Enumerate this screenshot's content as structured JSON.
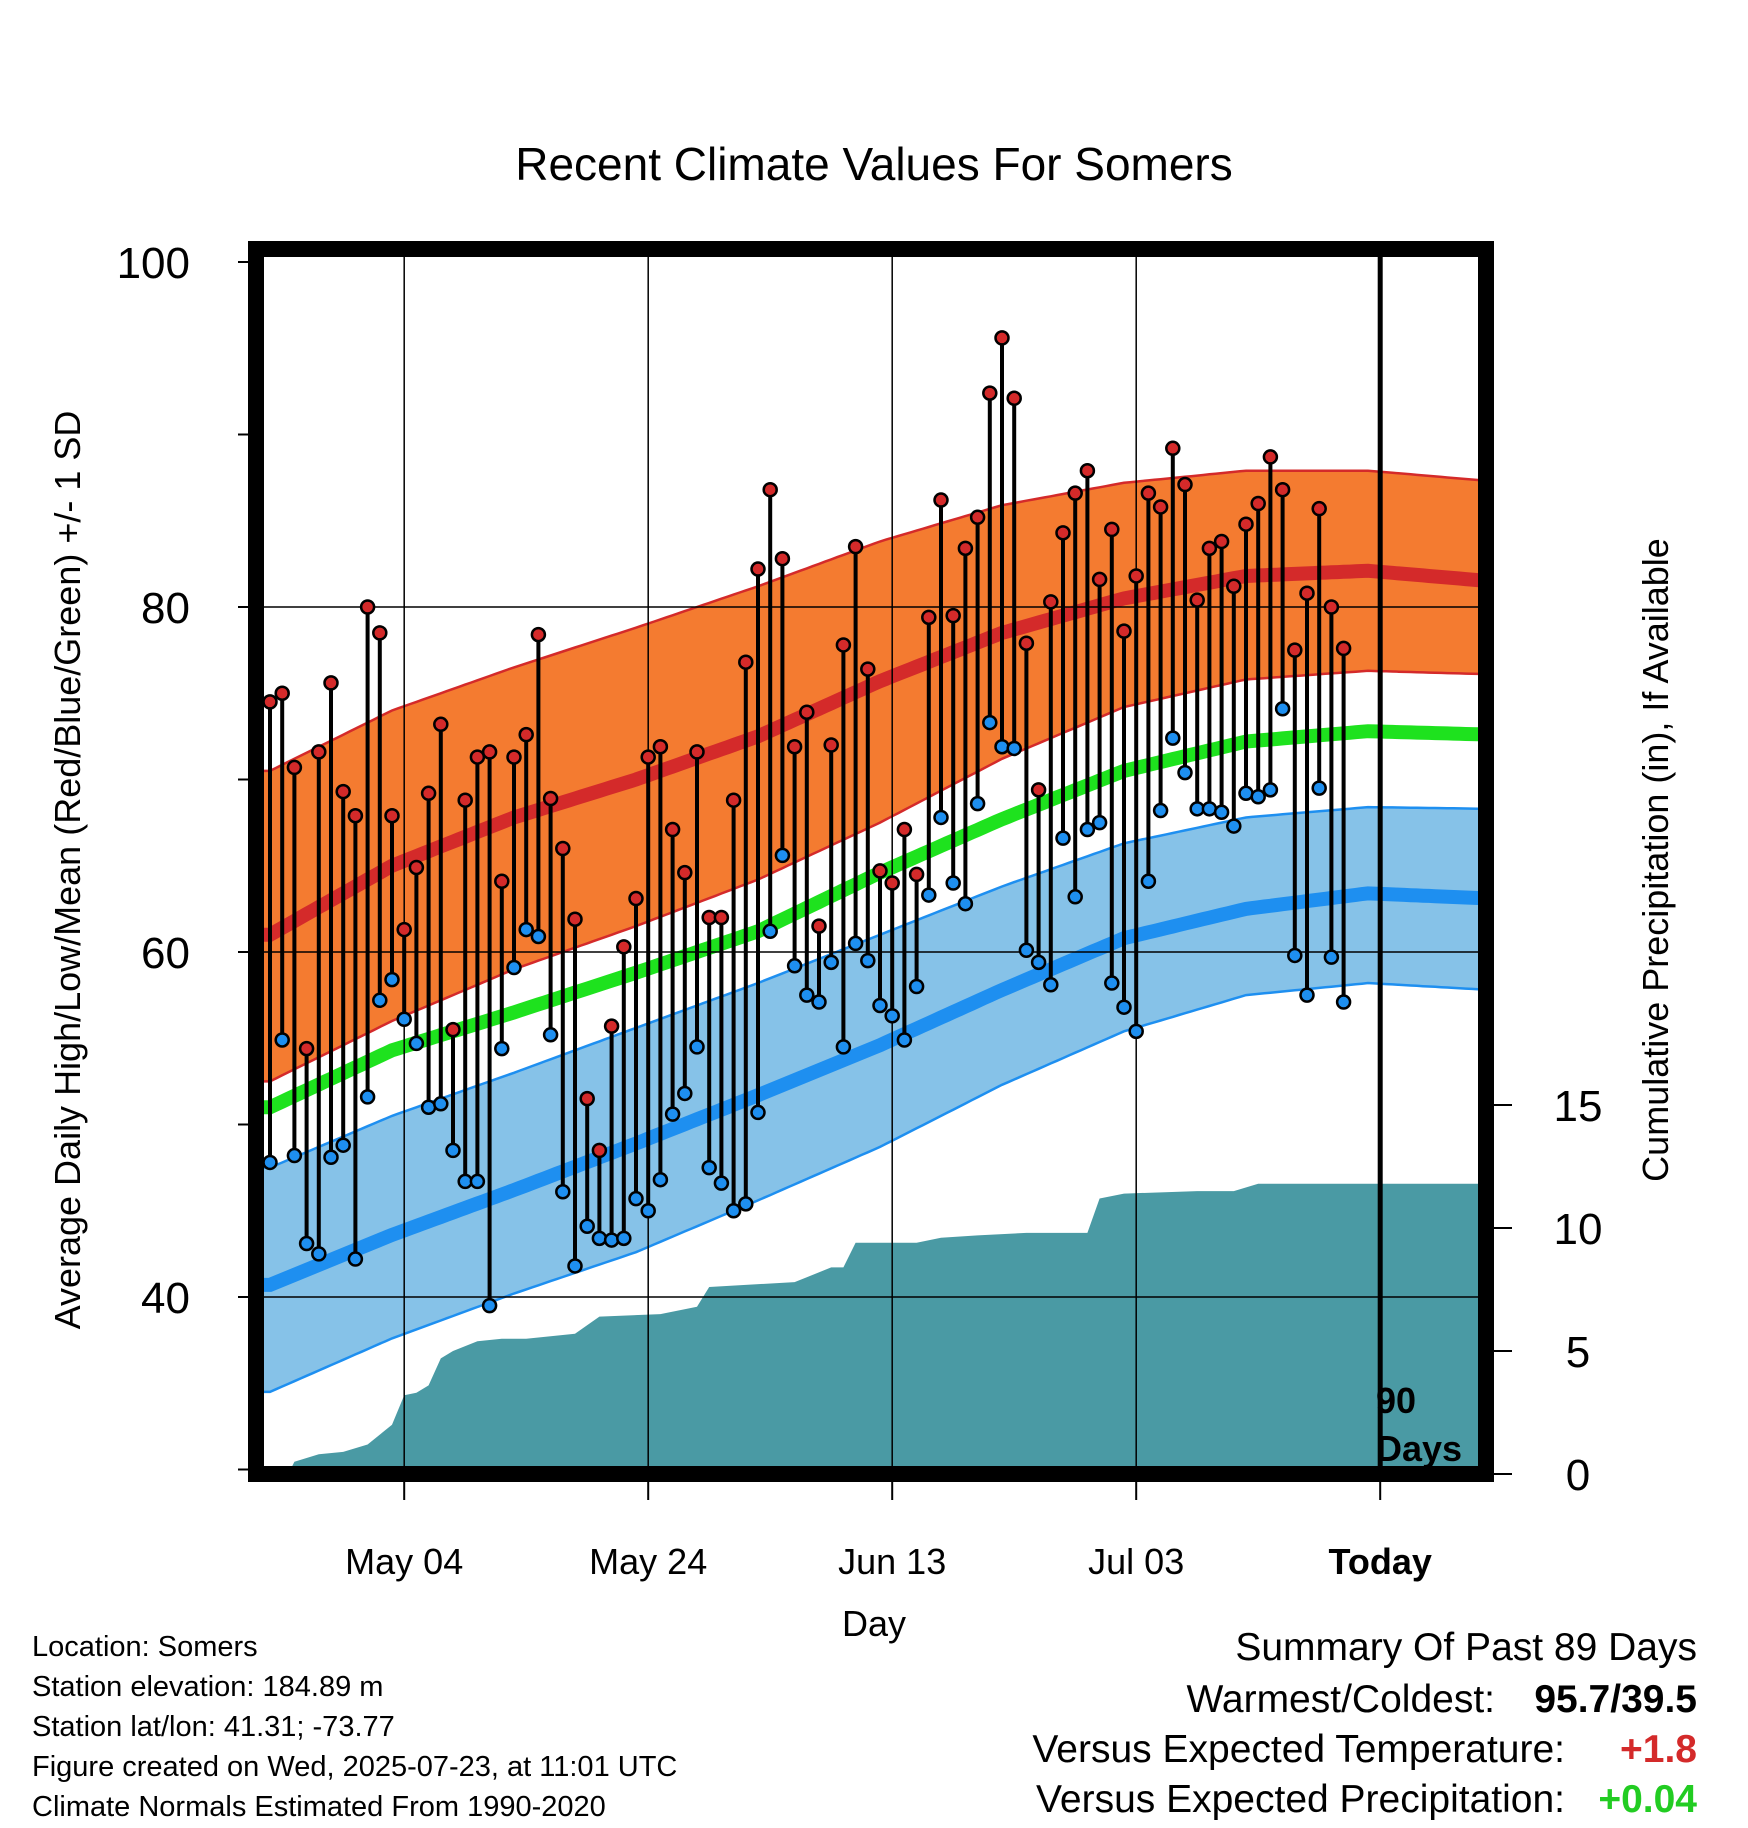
{
  "chart_data": {
    "type": "line",
    "title": "Recent Climate Values For Somers",
    "ylabel": "Average Daily High/Low/Mean (Red/Blue/Green) +/- 1 SD",
    "y2label": "Cumulative Precipitation (in), If Available",
    "xlabel": "Day",
    "ylim": [
      30,
      100
    ],
    "y2lim": [
      0,
      25
    ],
    "yticks": [
      "40",
      "60",
      "80",
      "100"
    ],
    "y2ticks": [
      "0",
      "5",
      "10",
      "15"
    ],
    "xtick_labels": [
      {
        "day": 11,
        "label": "May 04"
      },
      {
        "day": 31,
        "label": "May 24"
      },
      {
        "day": 51,
        "label": "Jun 13"
      },
      {
        "day": 71,
        "label": "Jul 03"
      },
      {
        "day": 91,
        "label": "Today"
      }
    ],
    "today_marker": {
      "day": 91,
      "label_line1": "90",
      "label_line2": "Days"
    },
    "series_colors": {
      "high_band": "#f47b30",
      "high_line": "#d42a2a",
      "low_band": "#86c2e8",
      "low_line": "#1e8ff0",
      "mean_line": "#1ee21e",
      "precip": "#4a9aa4"
    },
    "normals": {
      "days": [
        0,
        10,
        20,
        30,
        40,
        50,
        60,
        70,
        80,
        90,
        100
      ],
      "high_mean": [
        61,
        65,
        67.8,
        70,
        72.5,
        75.7,
        78.5,
        80.5,
        81.8,
        82.1,
        81.5
      ],
      "high_upper": [
        70.5,
        74,
        76.5,
        78.8,
        81.2,
        83.8,
        85.9,
        87.2,
        87.9,
        87.9,
        87.3
      ],
      "high_lower": [
        52.5,
        56,
        59,
        61.5,
        64.2,
        67.5,
        71.2,
        74.2,
        75.8,
        76.3,
        76.1
      ],
      "mean": [
        51,
        54.3,
        56.5,
        58.8,
        61.2,
        64.6,
        67.7,
        70.5,
        72.2,
        72.8,
        72.6
      ],
      "low_mean": [
        40.7,
        43.6,
        46.2,
        48.9,
        51.7,
        54.6,
        57.8,
        60.8,
        62.5,
        63.4,
        63.1
      ],
      "low_upper": [
        47.5,
        50.5,
        53,
        55.6,
        58.2,
        61,
        63.8,
        66.3,
        67.8,
        68.4,
        68.3
      ],
      "low_lower": [
        34.5,
        37.6,
        40.2,
        42.6,
        45.6,
        48.7,
        52.3,
        55.4,
        57.5,
        58.2,
        57.8
      ]
    },
    "daily_high": [
      74.5,
      75,
      70.7,
      54.4,
      71.6,
      75.6,
      69.3,
      67.9,
      80,
      78.5,
      67.9,
      61.3,
      64.9,
      69.2,
      73.2,
      55.5,
      68.8,
      71.3,
      71.6,
      64.1,
      71.3,
      72.6,
      78.4,
      68.9,
      66,
      61.9,
      51.5,
      48.5,
      55.7,
      60.3,
      63.1,
      71.3,
      71.9,
      67.1,
      64.6,
      71.6,
      62,
      62,
      68.8,
      76.8,
      82.2,
      86.8,
      82.8,
      71.9,
      73.9,
      61.5,
      72,
      77.8,
      83.5,
      76.4,
      64.7,
      64,
      67.1,
      64.5,
      79.4,
      86.2,
      79.5,
      83.4,
      85.2,
      92.4,
      95.6,
      92.1,
      77.9,
      69.4,
      80.3,
      84.3,
      86.6,
      87.9,
      81.6,
      84.5,
      78.6,
      81.8,
      86.6,
      85.8,
      89.2,
      87.1,
      80.4,
      83.4,
      83.8,
      81.2,
      84.8,
      86,
      88.7,
      86.8,
      77.5,
      80.8,
      85.7,
      80,
      77.6
    ],
    "daily_low": [
      47.8,
      54.9,
      48.2,
      43.1,
      42.5,
      48.1,
      48.8,
      42.2,
      51.6,
      57.2,
      58.4,
      56.1,
      54.7,
      51,
      51.2,
      48.5,
      46.7,
      46.7,
      39.5,
      54.4,
      59.1,
      61.3,
      60.9,
      55.2,
      46.1,
      41.8,
      44.1,
      43.4,
      43.3,
      43.4,
      45.7,
      45,
      46.8,
      50.6,
      51.8,
      54.5,
      47.5,
      46.6,
      45,
      45.4,
      50.7,
      61.2,
      65.6,
      59.2,
      57.5,
      57.1,
      59.4,
      54.5,
      60.5,
      59.5,
      56.9,
      56.3,
      54.9,
      58,
      63.3,
      67.8,
      64,
      62.8,
      68.6,
      73.3,
      71.9,
      71.8,
      60.1,
      59.4,
      58.1,
      66.6,
      63.2,
      67.1,
      67.5,
      58.2,
      56.8,
      55.4,
      64.1,
      68.2,
      72.4,
      70.4,
      68.3,
      68.3,
      68.1,
      67.3,
      69.2,
      69,
      69.4,
      74.1,
      59.8,
      57.5,
      69.5,
      59.7,
      57.1
    ],
    "precip_cumulative": [
      [
        1.5,
        0
      ],
      [
        2,
        0.5
      ],
      [
        4,
        0.8
      ],
      [
        6,
        0.9
      ],
      [
        8,
        1.2
      ],
      [
        10,
        2.0
      ],
      [
        11,
        3.2
      ],
      [
        12,
        3.3
      ],
      [
        13,
        3.6
      ],
      [
        14,
        4.7
      ],
      [
        15,
        5.0
      ],
      [
        17,
        5.4
      ],
      [
        19,
        5.5
      ],
      [
        21,
        5.5
      ],
      [
        25,
        5.7
      ],
      [
        27,
        6.4
      ],
      [
        32,
        6.5
      ],
      [
        35,
        6.8
      ],
      [
        36,
        7.6
      ],
      [
        43,
        7.8
      ],
      [
        44,
        8.0
      ],
      [
        46,
        8.4
      ],
      [
        47,
        8.4
      ],
      [
        48,
        9.4
      ],
      [
        53,
        9.4
      ],
      [
        55,
        9.6
      ],
      [
        58,
        9.7
      ],
      [
        62,
        9.8
      ],
      [
        67,
        9.8
      ],
      [
        68,
        11.2
      ],
      [
        70,
        11.4
      ],
      [
        76,
        11.5
      ],
      [
        79,
        11.5
      ],
      [
        81,
        11.8
      ],
      [
        88,
        11.8
      ],
      [
        99.5,
        11.8
      ]
    ]
  },
  "footer": {
    "location": "Location: Somers",
    "elevation": "Station elevation: 184.89 m",
    "latlon": "Station lat/lon: 41.31; -73.77",
    "created": "Figure created on Wed, 2025-07-23, at 11:01 UTC",
    "normals": "Climate Normals Estimated From 1990-2020"
  },
  "summary": {
    "heading": "Summary Of Past 89 Days",
    "warmest_label": "Warmest/Coldest:",
    "warmest_value": "95.7/39.5",
    "temp_label": "Versus Expected Temperature:",
    "temp_value": "+1.8",
    "temp_color": "#d42a2a",
    "precip_label": "Versus Expected Precipitation:",
    "precip_value": "+0.04",
    "precip_color": "#22cc22"
  }
}
